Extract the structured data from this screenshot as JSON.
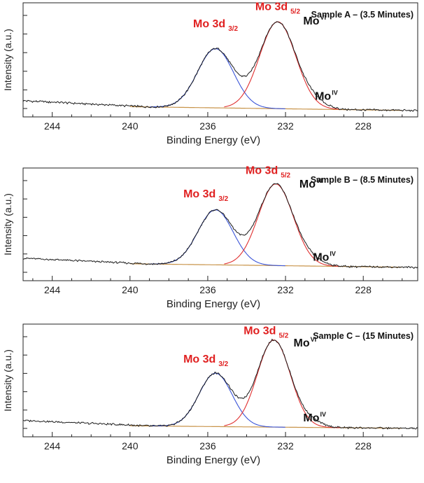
{
  "chart_data": [
    {
      "type": "line",
      "xlabel": "Binding Energy (eV)",
      "ylabel": "Intensity (a.u.)",
      "xlim": [
        245.5,
        225.2
      ],
      "x_ticks": [
        244,
        240,
        236,
        232,
        228
      ],
      "x_tick_labels": [
        "244",
        "240",
        "236",
        "232",
        "228"
      ],
      "sample_label": "Sample A – (3.5 Minutes)",
      "annotations": [
        {
          "text": "Mo 3d",
          "sub": "3/2",
          "color": "#e02020",
          "x": 235.6,
          "level": 0.93
        },
        {
          "text": "Mo 3d",
          "sub": "5/2",
          "color": "#e02020",
          "x": 232.4,
          "level": 1.12
        },
        {
          "text": "Mo",
          "sup": "VI",
          "color": "#111111",
          "x": 230.5,
          "level": 0.96
        },
        {
          "text": "Mo",
          "sup": "IV",
          "color": "#111111",
          "x": 229.9,
          "level": 0.12
        }
      ],
      "series": [
        {
          "name": "Mo 3d 3/2 fit",
          "color": "#3b55d8",
          "center": 235.6,
          "height": 0.66,
          "width": 0.92
        },
        {
          "name": "Mo 3d 5/2 fit",
          "color": "#e03030",
          "center": 232.4,
          "height": 0.97,
          "width": 0.93
        },
        {
          "name": "Mo IV shoulder",
          "color": "#555555",
          "center": 230.5,
          "height": 0.06,
          "width": 0.6
        },
        {
          "name": "Background",
          "color": "#c8944a",
          "left_level": 0.06,
          "right_level": 0.0
        }
      ]
    },
    {
      "type": "line",
      "xlabel": "Binding Energy (eV)",
      "ylabel": "Intensity (a.u.)",
      "xlim": [
        245.5,
        225.2
      ],
      "x_ticks": [
        244,
        240,
        236,
        232,
        228
      ],
      "x_tick_labels": [
        "244",
        "240",
        "236",
        "232",
        "228"
      ],
      "sample_label": "Sample B – (8.5 Minutes)",
      "annotations": [
        {
          "text": "Mo 3d",
          "sub": "3/2",
          "color": "#e02020",
          "x": 236.1,
          "level": 0.84
        },
        {
          "text": "Mo 3d",
          "sub": "5/2",
          "color": "#e02020",
          "x": 232.9,
          "level": 1.12
        },
        {
          "text": "Mo",
          "sup": "VI",
          "color": "#111111",
          "x": 230.7,
          "level": 0.96
        },
        {
          "text": "Mo",
          "sup": "IV",
          "color": "#111111",
          "x": 230.0,
          "level": 0.08
        }
      ],
      "series": [
        {
          "name": "Mo 3d 3/2 fit",
          "color": "#3b55d8",
          "center": 235.6,
          "height": 0.66,
          "width": 0.9
        },
        {
          "name": "Mo 3d 5/2 fit",
          "color": "#e03030",
          "center": 232.5,
          "height": 0.98,
          "width": 0.9
        },
        {
          "name": "Mo IV shoulder",
          "color": "#555555",
          "center": 230.6,
          "height": 0.05,
          "width": 0.6
        },
        {
          "name": "Background",
          "color": "#c8944a",
          "left_level": 0.06,
          "right_level": 0.0
        }
      ]
    },
    {
      "type": "line",
      "xlabel": "Binding Energy (eV)",
      "ylabel": "Intensity (a.u.)",
      "xlim": [
        245.5,
        225.2
      ],
      "x_ticks": [
        244,
        240,
        236,
        232,
        228
      ],
      "x_tick_labels": [
        "244",
        "240",
        "236",
        "232",
        "228"
      ],
      "sample_label": "Sample C – (15 Minutes)",
      "annotations": [
        {
          "text": "Mo 3d",
          "sub": "3/2",
          "color": "#e02020",
          "x": 236.1,
          "level": 0.74
        },
        {
          "text": "Mo 3d",
          "sub": "5/2",
          "color": "#e02020",
          "x": 233.0,
          "level": 1.06
        },
        {
          "text": "Mo",
          "sup": "VI",
          "color": "#111111",
          "x": 231.0,
          "level": 0.92
        },
        {
          "text": "Mo",
          "sup": "IV",
          "color": "#111111",
          "x": 230.5,
          "level": 0.08
        }
      ],
      "series": [
        {
          "name": "Mo 3d 3/2 fit",
          "color": "#3b55d8",
          "center": 235.6,
          "height": 0.6,
          "width": 0.85
        },
        {
          "name": "Mo 3d 5/2 fit",
          "color": "#e03030",
          "center": 232.6,
          "height": 0.98,
          "width": 0.85
        },
        {
          "name": "Mo IV shoulder",
          "color": "#555555",
          "center": 230.7,
          "height": 0.05,
          "width": 0.6
        },
        {
          "name": "Background",
          "color": "#c8944a",
          "left_level": 0.04,
          "right_level": 0.0
        }
      ]
    }
  ]
}
